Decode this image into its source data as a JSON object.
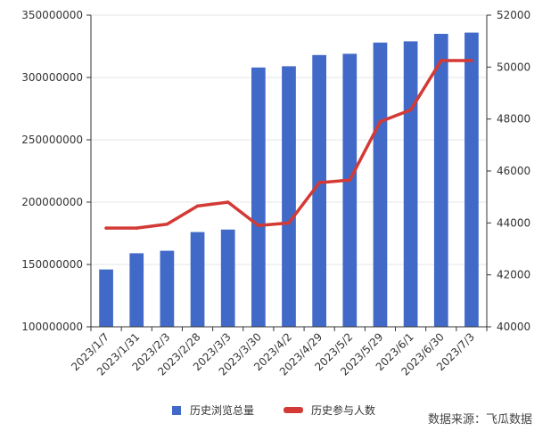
{
  "chart_data": {
    "type": "bar",
    "categories": [
      "2023/1/7",
      "2023/1/31",
      "2023/2/3",
      "2023/2/28",
      "2023/3/3",
      "2023/3/30",
      "2023/4/2",
      "2023/4/29",
      "2023/5/2",
      "2023/5/29",
      "2023/6/1",
      "2023/6/30",
      "2023/7/3"
    ],
    "series": [
      {
        "name": "历史浏览总量",
        "type": "bar",
        "axis": "left",
        "color": "#4169C8",
        "values": [
          146000000,
          159000000,
          161000000,
          176000000,
          178000000,
          308000000,
          309000000,
          318000000,
          319000000,
          328000000,
          329000000,
          335000000,
          336000000
        ]
      },
      {
        "name": "历史参与人数",
        "type": "line",
        "axis": "right",
        "color": "#D33A35",
        "values": [
          43800,
          43800,
          43950,
          44650,
          44800,
          43900,
          44000,
          45550,
          45650,
          47900,
          48350,
          50250,
          50250
        ]
      }
    ],
    "y_left": {
      "min": 100000000,
      "max": 350000000,
      "ticks": [
        100000000,
        150000000,
        200000000,
        250000000,
        300000000,
        350000000
      ]
    },
    "y_right": {
      "min": 40000,
      "max": 52000,
      "ticks": [
        40000,
        42000,
        44000,
        46000,
        48000,
        50000,
        52000
      ]
    },
    "grid": true,
    "legend_position": "bottom",
    "source_note": "数据来源：飞瓜数据"
  }
}
